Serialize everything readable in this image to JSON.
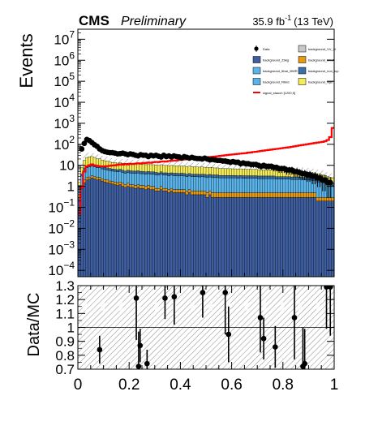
{
  "header": {
    "cms": "CMS",
    "preliminary": "Preliminary",
    "lumi_value": "35.9 fb",
    "lumi_exp": "-1",
    "energy": "(13 TeV)"
  },
  "colors": {
    "ttz": "#3f5e9f",
    "tt_hard": "#5ab4ea",
    "wz": "#5ab4ea",
    "ttw": "#e79a12",
    "triboson": "#3a6fa8",
    "other": "#c8c8c8",
    "rare": "#f4ec5b",
    "signal": "#ff0000",
    "data": "#000000"
  },
  "chart_data": [
    {
      "type": "bar",
      "stacked": true,
      "log_y": true,
      "ylabel": "Events",
      "ylim": [
        5e-05,
        30000000
      ],
      "xlim": [
        0,
        1
      ],
      "y_ticks": [
        {
          "value": 0.0001,
          "base": "10",
          "exp": "−4"
        },
        {
          "value": 0.001,
          "base": "10",
          "exp": "−3"
        },
        {
          "value": 0.01,
          "base": "10",
          "exp": "−2"
        },
        {
          "value": 0.1,
          "base": "10",
          "exp": "−1"
        },
        {
          "value": 1,
          "base": "1",
          "exp": ""
        },
        {
          "value": 10,
          "base": "10",
          "exp": ""
        },
        {
          "value": 100,
          "base": "10",
          "exp": "2"
        },
        {
          "value": 1000,
          "base": "10",
          "exp": "3"
        },
        {
          "value": 10000,
          "base": "10",
          "exp": "4"
        },
        {
          "value": 100000,
          "base": "10",
          "exp": "5"
        },
        {
          "value": 1000000,
          "base": "10",
          "exp": "6"
        },
        {
          "value": 10000000,
          "base": "10",
          "exp": "7"
        }
      ],
      "legend_position": "top-right",
      "legend": [
        {
          "label": "Data",
          "key": "data",
          "style": "marker"
        },
        {
          "label": "background_VV_3l",
          "key": "other",
          "style": "box"
        },
        {
          "label": "background_Zbkg",
          "key": "ttz",
          "style": "box"
        },
        {
          "label": "background_MInA",
          "key": "ttw",
          "style": "box"
        },
        {
          "label": "background_ttbar_BWR",
          "key": "tt_hard",
          "style": "box"
        },
        {
          "label": "background_non_top",
          "key": "triboson",
          "style": "box"
        },
        {
          "label": "background_Rbkd",
          "key": "wz",
          "style": "box"
        },
        {
          "label": "background_wjet",
          "key": "rare",
          "style": "box"
        },
        {
          "label": "signal_stauch [1200,5]",
          "key": "signal",
          "style": "line"
        }
      ],
      "bins": [
        0.0,
        0.01,
        0.02,
        0.03,
        0.04,
        0.05,
        0.06,
        0.07,
        0.08,
        0.09,
        0.1,
        0.11,
        0.12,
        0.13,
        0.14,
        0.15,
        0.16,
        0.17,
        0.18,
        0.19,
        0.2,
        0.21,
        0.22,
        0.23,
        0.24,
        0.25,
        0.26,
        0.27,
        0.28,
        0.29,
        0.3,
        0.31,
        0.32,
        0.33,
        0.34,
        0.35,
        0.36,
        0.37,
        0.38,
        0.39,
        0.4,
        0.41,
        0.42,
        0.43,
        0.44,
        0.45,
        0.46,
        0.47,
        0.48,
        0.49,
        0.5,
        0.51,
        0.52,
        0.53,
        0.54,
        0.55,
        0.56,
        0.57,
        0.58,
        0.59,
        0.6,
        0.61,
        0.62,
        0.63,
        0.64,
        0.65,
        0.66,
        0.67,
        0.68,
        0.69,
        0.7,
        0.71,
        0.72,
        0.73,
        0.74,
        0.75,
        0.76,
        0.77,
        0.78,
        0.79,
        0.8,
        0.81,
        0.82,
        0.83,
        0.84,
        0.85,
        0.86,
        0.87,
        0.88,
        0.89,
        0.9,
        0.91,
        0.92,
        0.93,
        0.94,
        0.95,
        0.96,
        0.97,
        0.98,
        0.99,
        1.0
      ],
      "stack_layers": [
        {
          "key": "ttz",
          "values": [
            0.3,
            0.8,
            1.5,
            2.0,
            2.2,
            2.5,
            2.3,
            2.0,
            2.1,
            1.8,
            1.6,
            1.5,
            1.4,
            1.3,
            1.2,
            1.1,
            1.2,
            1.0,
            0.9,
            1.0,
            0.9,
            0.9,
            0.8,
            0.9,
            0.8,
            0.8,
            0.7,
            0.8,
            0.7,
            0.7,
            0.6,
            0.6,
            0.7,
            0.6,
            0.6,
            0.5,
            0.6,
            0.5,
            0.5,
            0.5,
            0.5,
            0.5,
            0.4,
            0.5,
            0.4,
            0.4,
            0.4,
            0.4,
            0.4,
            0.4,
            0.3,
            0.4,
            0.3,
            0.3,
            0.3,
            0.3,
            0.3,
            0.3,
            0.3,
            0.3,
            0.3,
            0.3,
            0.3,
            0.3,
            0.3,
            0.3,
            0.3,
            0.3,
            0.3,
            0.3,
            0.3,
            0.3,
            0.3,
            0.3,
            0.3,
            0.3,
            0.3,
            0.3,
            0.3,
            0.3,
            0.3,
            0.3,
            0.3,
            0.3,
            0.3,
            0.3,
            0.3,
            0.3,
            0.3,
            0.3,
            0.3,
            0.3,
            0.3,
            0.2,
            0.2,
            0.2,
            0.2,
            0.2,
            0.2,
            0.2
          ]
        },
        {
          "key": "ttw",
          "values": [
            0.1,
            0.3,
            0.5,
            0.6,
            0.6,
            0.7,
            0.6,
            0.6,
            0.6,
            0.5,
            0.5,
            0.5,
            0.4,
            0.4,
            0.4,
            0.4,
            0.4,
            0.4,
            0.3,
            0.4,
            0.3,
            0.3,
            0.3,
            0.3,
            0.3,
            0.3,
            0.3,
            0.3,
            0.3,
            0.3,
            0.2,
            0.2,
            0.3,
            0.2,
            0.2,
            0.2,
            0.2,
            0.2,
            0.2,
            0.2,
            0.2,
            0.2,
            0.2,
            0.2,
            0.2,
            0.2,
            0.2,
            0.2,
            0.2,
            0.2,
            0.2,
            0.2,
            0.2,
            0.2,
            0.2,
            0.2,
            0.2,
            0.2,
            0.2,
            0.2,
            0.2,
            0.2,
            0.2,
            0.2,
            0.2,
            0.2,
            0.2,
            0.2,
            0.2,
            0.2,
            0.2,
            0.2,
            0.2,
            0.2,
            0.2,
            0.2,
            0.2,
            0.2,
            0.2,
            0.2,
            0.2,
            0.2,
            0.2,
            0.2,
            0.2,
            0.2,
            0.2,
            0.2,
            0.2,
            0.2,
            0.2,
            0.2,
            0.2,
            0.1,
            0.1,
            0.1,
            0.1,
            0.1,
            0.1,
            0.1
          ]
        },
        {
          "key": "tt_hard",
          "values": [
            0.5,
            2.0,
            4.0,
            5.0,
            5.5,
            6.0,
            5.5,
            5.0,
            5.0,
            4.5,
            4.2,
            4.0,
            3.8,
            3.6,
            3.5,
            3.4,
            3.5,
            3.2,
            3.0,
            3.2,
            3.1,
            3.0,
            3.0,
            3.1,
            2.9,
            2.9,
            2.8,
            2.9,
            2.8,
            2.8,
            2.7,
            2.6,
            2.8,
            2.6,
            2.6,
            2.5,
            2.6,
            2.5,
            2.5,
            2.4,
            2.5,
            2.4,
            2.3,
            2.4,
            2.3,
            2.3,
            2.3,
            2.2,
            2.3,
            2.2,
            2.1,
            2.2,
            2.1,
            2.1,
            2.1,
            2.0,
            2.0,
            2.0,
            2.0,
            2.0,
            2.0,
            2.0,
            1.9,
            2.0,
            1.9,
            1.9,
            1.9,
            1.9,
            1.9,
            1.9,
            1.8,
            1.8,
            1.8,
            1.8,
            1.8,
            1.8,
            1.8,
            1.7,
            1.7,
            1.7,
            1.7,
            1.7,
            1.7,
            1.6,
            1.6,
            1.6,
            1.6,
            1.6,
            1.5,
            1.5,
            1.5,
            1.4,
            1.4,
            1.3,
            1.3,
            1.2,
            1.1,
            1.0,
            0.9,
            0.8
          ]
        },
        {
          "key": "triboson",
          "values": [
            0.2,
            0.8,
            1.5,
            2.0,
            2.2,
            2.4,
            2.2,
            2.0,
            2.0,
            1.8,
            1.7,
            1.6,
            1.5,
            1.4,
            1.4,
            1.3,
            1.4,
            1.3,
            1.2,
            1.3,
            1.2,
            1.2,
            1.2,
            1.2,
            1.2,
            1.1,
            1.1,
            1.1,
            1.1,
            1.1,
            1.1,
            1.0,
            1.1,
            1.0,
            1.0,
            1.0,
            1.0,
            1.0,
            1.0,
            1.0,
            1.0,
            1.0,
            0.9,
            1.0,
            0.9,
            0.9,
            0.9,
            0.9,
            0.9,
            0.9,
            0.9,
            0.9,
            0.9,
            0.9,
            0.9,
            0.8,
            0.8,
            0.8,
            0.8,
            0.8,
            0.8,
            0.8,
            0.8,
            0.8,
            0.8,
            0.8,
            0.8,
            0.8,
            0.8,
            0.8,
            0.8,
            0.8,
            0.8,
            0.8,
            0.8,
            0.8,
            0.8,
            0.7,
            0.7,
            0.7,
            0.7,
            0.7,
            0.7,
            0.7,
            0.7,
            0.7,
            0.7,
            0.7,
            0.6,
            0.6,
            0.6,
            0.6,
            0.6,
            0.5,
            0.5,
            0.5,
            0.5,
            0.4,
            0.4,
            0.4
          ]
        },
        {
          "key": "rare",
          "values": [
            0.5,
            4.0,
            10.0,
            14.0,
            15.0,
            14.5,
            13.0,
            11.0,
            10.5,
            9.0,
            8.5,
            8.0,
            7.5,
            7.0,
            7.0,
            6.5,
            7.0,
            6.5,
            6.0,
            6.5,
            6.3,
            6.0,
            6.2,
            6.4,
            6.0,
            6.0,
            5.8,
            6.0,
            5.8,
            5.8,
            5.6,
            5.5,
            5.8,
            5.5,
            5.5,
            5.3,
            5.5,
            5.3,
            5.2,
            5.0,
            5.2,
            5.0,
            4.8,
            5.0,
            4.8,
            4.7,
            4.6,
            4.5,
            4.6,
            4.4,
            4.2,
            4.3,
            4.1,
            4.0,
            4.0,
            3.8,
            3.8,
            3.7,
            3.6,
            3.6,
            3.5,
            3.5,
            3.4,
            3.5,
            3.3,
            3.3,
            3.3,
            3.2,
            3.2,
            3.2,
            3.1,
            3.1,
            3.0,
            3.0,
            3.0,
            2.9,
            2.9,
            2.8,
            2.8,
            2.7,
            2.7,
            2.6,
            2.6,
            2.5,
            2.4,
            2.4,
            2.3,
            2.3,
            2.2,
            2.1,
            2.0,
            1.9,
            1.8,
            1.7,
            1.6,
            1.5,
            1.4,
            1.2,
            1.1,
            1.0
          ]
        }
      ],
      "uncertainty_band": true,
      "signal": {
        "key": "signal",
        "values": [
          0.05,
          0.9,
          5.0,
          9.0,
          10.0,
          11.0,
          10.0,
          9.5,
          9.0,
          9.0,
          9.0,
          9.2,
          9.5,
          9.8,
          10.0,
          10.5,
          11.0,
          10.8,
          11.5,
          11.0,
          11.8,
          11.5,
          12.0,
          12.5,
          12.2,
          12.8,
          13.0,
          13.5,
          13.2,
          14.0,
          14.5,
          14.2,
          15.0,
          15.5,
          15.0,
          16.0,
          16.5,
          17.0,
          16.8,
          18.0,
          18.5,
          19.0,
          19.5,
          20.0,
          20.5,
          21.0,
          21.5,
          22.0,
          23.0,
          23.5,
          24.0,
          25.0,
          25.5,
          26.0,
          27.0,
          28.0,
          29.0,
          30.0,
          31.0,
          32.0,
          33.0,
          34.0,
          35.0,
          36.0,
          37.0,
          38.0,
          40.0,
          41.0,
          43.0,
          44.0,
          46.0,
          48.0,
          50.0,
          52.0,
          54.0,
          56.0,
          58.0,
          60.0,
          62.0,
          65.0,
          68.0,
          70.0,
          72.0,
          76.0,
          80.0,
          84.0,
          88.0,
          92.0,
          96.0,
          100.0,
          105.0,
          110.0,
          115.0,
          120.0,
          125.0,
          130.0,
          140.0,
          160.0,
          220.0,
          600.0
        ]
      },
      "data_points": {
        "x": [
          0.015,
          0.025,
          0.035,
          0.045,
          0.055,
          0.065,
          0.075,
          0.085,
          0.095,
          0.105,
          0.115,
          0.125,
          0.135,
          0.145,
          0.155,
          0.165,
          0.175,
          0.185,
          0.195,
          0.205,
          0.215,
          0.225,
          0.235,
          0.245,
          0.255,
          0.265,
          0.275,
          0.285,
          0.295,
          0.305,
          0.315,
          0.325,
          0.335,
          0.345,
          0.355,
          0.365,
          0.375,
          0.385,
          0.395,
          0.405,
          0.415,
          0.425,
          0.435,
          0.445,
          0.455,
          0.465,
          0.475,
          0.485,
          0.495,
          0.505,
          0.515,
          0.525,
          0.535,
          0.545,
          0.555,
          0.565,
          0.575,
          0.585,
          0.595,
          0.605,
          0.615,
          0.625,
          0.635,
          0.645,
          0.655,
          0.665,
          0.675,
          0.685,
          0.695,
          0.705,
          0.715,
          0.725,
          0.735,
          0.745,
          0.755,
          0.765,
          0.775,
          0.785,
          0.795,
          0.805,
          0.815,
          0.825,
          0.835,
          0.845,
          0.855,
          0.865,
          0.875,
          0.885,
          0.895,
          0.905,
          0.915,
          0.925,
          0.935,
          0.945,
          0.955,
          0.965,
          0.975,
          0.985
        ],
        "y": [
          60,
          110,
          170,
          150,
          120,
          95,
          80,
          60,
          50,
          45,
          42,
          40,
          40,
          38,
          35,
          36,
          38,
          35,
          32,
          35,
          33,
          30,
          28,
          32,
          30,
          30,
          26,
          30,
          28,
          30,
          27,
          25,
          30,
          26,
          28,
          25,
          28,
          26,
          25,
          22,
          26,
          24,
          22,
          24,
          22,
          21,
          21,
          20,
          22,
          20,
          18,
          19,
          18,
          17,
          17,
          16,
          16,
          15,
          14,
          15,
          14,
          14,
          12,
          13,
          12,
          12,
          11,
          11,
          11,
          10,
          9,
          10,
          9,
          9,
          9,
          8,
          8,
          7,
          7,
          7,
          6,
          6,
          6,
          5,
          5,
          4.5,
          4,
          4,
          3.5,
          3.5,
          3,
          3,
          2.5,
          2.5,
          2,
          2,
          1.5,
          1.5
        ]
      }
    },
    {
      "type": "scatter",
      "xlabel": "",
      "ylabel": "Data/MC",
      "ylim": [
        0.7,
        1.3
      ],
      "xlim": [
        0,
        1
      ],
      "y_ticks": [
        "0.7",
        "0.8",
        "0.9",
        "1",
        "1.1",
        "1.2",
        "1.3"
      ],
      "x_ticks": [
        "0",
        "0.2",
        "0.4",
        "0.6",
        "0.8",
        "1"
      ],
      "reference_line": 1.0,
      "points": [
        {
          "x": 0.085,
          "y": 0.84,
          "err": 0.1
        },
        {
          "x": 0.228,
          "y": 1.21,
          "err": 0.3
        },
        {
          "x": 0.237,
          "y": 0.72,
          "err": 0.25
        },
        {
          "x": 0.243,
          "y": 0.87,
          "err": 0.12
        },
        {
          "x": 0.27,
          "y": 0.74,
          "err": 0.1
        },
        {
          "x": 0.34,
          "y": 1.21,
          "err": 0.15
        },
        {
          "x": 0.376,
          "y": 1.22,
          "err": 0.2
        },
        {
          "x": 0.487,
          "y": 1.25,
          "err": 0.18
        },
        {
          "x": 0.575,
          "y": 1.25,
          "err": 0.3
        },
        {
          "x": 0.588,
          "y": 0.95,
          "err": 0.2
        },
        {
          "x": 0.712,
          "y": 1.07,
          "err": 0.25
        },
        {
          "x": 0.725,
          "y": 0.92,
          "err": 0.15
        },
        {
          "x": 0.77,
          "y": 0.86,
          "err": 0.15
        },
        {
          "x": 0.845,
          "y": 1.07,
          "err": 0.3
        },
        {
          "x": 0.878,
          "y": 0.72,
          "err": 0.28
        },
        {
          "x": 0.885,
          "y": 0.74,
          "err": 0.25
        },
        {
          "x": 0.97,
          "y": 1.29,
          "err": 0.3
        },
        {
          "x": 0.985,
          "y": 1.29,
          "err": 0.35
        }
      ]
    }
  ]
}
